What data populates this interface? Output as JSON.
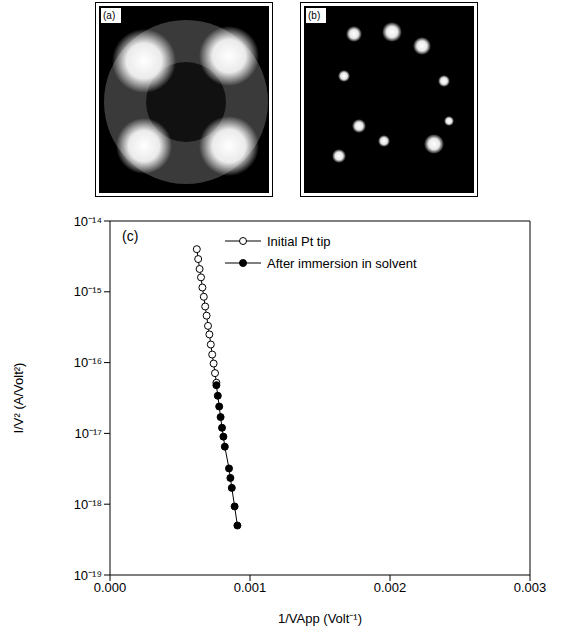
{
  "images": [
    {
      "label": "(a)"
    },
    {
      "label": "(b)"
    }
  ],
  "chart_data": {
    "type": "line",
    "panel_label": "(c)",
    "x_label": "1/VApp (Volt⁻¹)",
    "y_label": "I/V² (A/Volt²)",
    "log": "y",
    "xlim": [
      0,
      0.003
    ],
    "xticks": [
      {
        "value": 0,
        "label": "0.000"
      },
      {
        "value": 0.001,
        "label": "0.001"
      },
      {
        "value": 0.002,
        "label": "0.002"
      },
      {
        "value": 0.003,
        "label": "0.003"
      }
    ],
    "ylim": [
      1e-19,
      1e-14
    ],
    "yticks": [
      {
        "value": 1e-19,
        "label": "10⁻¹⁹"
      },
      {
        "value": 1e-18,
        "label": "10⁻¹⁸"
      },
      {
        "value": 1e-17,
        "label": "10⁻¹⁷"
      },
      {
        "value": 1e-16,
        "label": "10⁻¹⁶"
      },
      {
        "value": 1e-15,
        "label": "10⁻¹⁵"
      },
      {
        "value": 1e-14,
        "label": "10⁻¹⁴"
      }
    ],
    "legend": "upper right",
    "series": [
      {
        "name": "Initial Pt tip",
        "color": "#000000",
        "marker": "open circle",
        "line_style": "solid",
        "x": [
          0.00062,
          0.00063,
          0.00064,
          0.00065,
          0.00066,
          0.00067,
          0.00068,
          0.00069,
          0.0007,
          0.00071,
          0.00072,
          0.00073,
          0.00074,
          0.00075,
          0.00076
        ],
        "values": [
          4e-15,
          2.9e-15,
          2.1e-15,
          1.6e-15,
          1.15e-15,
          8.5e-16,
          6.2e-16,
          4.6e-16,
          3.3e-16,
          2.5e-16,
          1.8e-16,
          1.3e-16,
          9.7e-17,
          7.1e-17,
          5.2e-17
        ]
      },
      {
        "name": "After immersion in solvent",
        "color": "#000000",
        "marker": "filled circle",
        "line_style": "solid",
        "x": [
          0.00076,
          0.00077,
          0.00078,
          0.00079,
          0.0008,
          0.00081,
          0.00082,
          0.00085,
          0.00086,
          0.00087,
          0.00089,
          0.00091
        ],
        "values": [
          4.8e-17,
          3.4e-17,
          2.4e-17,
          1.7e-17,
          1.2e-17,
          9e-18,
          6.5e-18,
          3.2e-18,
          2.35e-18,
          1.7e-18,
          9.3e-19,
          5e-19
        ]
      }
    ]
  }
}
